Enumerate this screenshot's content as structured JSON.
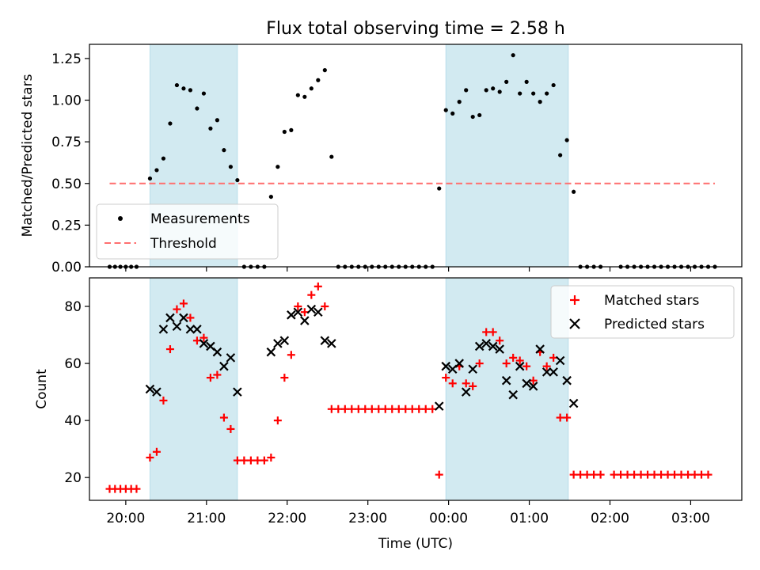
{
  "chart_data": [
    {
      "type": "scatter",
      "title": "Flux total observing time = 2.58 h",
      "xlabel": "",
      "ylabel": "Matched/Predicted stars",
      "ylim": [
        0,
        1.335
      ],
      "xlim": [
        "19:33",
        "03:38"
      ],
      "yticks": [
        "0.00",
        "0.25",
        "0.50",
        "0.75",
        "1.00",
        "1.25"
      ],
      "ytick_values": [
        0,
        0.25,
        0.5,
        0.75,
        1.0,
        1.25
      ],
      "grid": false,
      "legend": {
        "position": "lower-left",
        "entries": [
          "Measurements",
          "Threshold"
        ]
      },
      "colors": {
        "measurements": "#000000",
        "threshold": "#ff6f6f",
        "shade": "#add8e6"
      },
      "shaded_intervals": [
        [
          "20:18",
          "21:23"
        ],
        [
          "23:58",
          "01:29"
        ]
      ],
      "threshold": {
        "name": "Threshold",
        "value": 0.5,
        "x_range": [
          "19:48",
          "03:18"
        ]
      },
      "series": [
        {
          "name": "Measurements",
          "points": [
            [
              "19:48",
              0
            ],
            [
              "19:52",
              0
            ],
            [
              "19:56",
              0
            ],
            [
              "20:00",
              0
            ],
            [
              "20:04",
              0
            ],
            [
              "20:08",
              0
            ],
            [
              "20:18",
              0.53
            ],
            [
              "20:23",
              0.58
            ],
            [
              "20:28",
              0.65
            ],
            [
              "20:33",
              0.86
            ],
            [
              "20:38",
              1.09
            ],
            [
              "20:43",
              1.07
            ],
            [
              "20:48",
              1.06
            ],
            [
              "20:53",
              0.95
            ],
            [
              "20:58",
              1.04
            ],
            [
              "21:03",
              0.83
            ],
            [
              "21:08",
              0.88
            ],
            [
              "21:13",
              0.7
            ],
            [
              "21:18",
              0.6
            ],
            [
              "21:23",
              0.52
            ],
            [
              "21:28",
              0
            ],
            [
              "21:33",
              0
            ],
            [
              "21:38",
              0
            ],
            [
              "21:43",
              0
            ],
            [
              "21:48",
              0.42
            ],
            [
              "21:53",
              0.6
            ],
            [
              "21:58",
              0.81
            ],
            [
              "22:03",
              0.82
            ],
            [
              "22:08",
              1.03
            ],
            [
              "22:13",
              1.02
            ],
            [
              "22:18",
              1.07
            ],
            [
              "22:23",
              1.12
            ],
            [
              "22:28",
              1.18
            ],
            [
              "22:33",
              0.66
            ],
            [
              "22:38",
              0
            ],
            [
              "22:43",
              0
            ],
            [
              "22:48",
              0
            ],
            [
              "22:53",
              0
            ],
            [
              "22:58",
              0
            ],
            [
              "23:03",
              0
            ],
            [
              "23:08",
              0
            ],
            [
              "23:13",
              0
            ],
            [
              "23:18",
              0
            ],
            [
              "23:23",
              0
            ],
            [
              "23:28",
              0
            ],
            [
              "23:33",
              0
            ],
            [
              "23:38",
              0
            ],
            [
              "23:43",
              0
            ],
            [
              "23:48",
              0
            ],
            [
              "23:53",
              0.47
            ],
            [
              "23:58",
              0.94
            ],
            [
              "00:03",
              0.92
            ],
            [
              "00:08",
              0.99
            ],
            [
              "00:13",
              1.06
            ],
            [
              "00:18",
              0.9
            ],
            [
              "00:23",
              0.91
            ],
            [
              "00:28",
              1.06
            ],
            [
              "00:33",
              1.07
            ],
            [
              "00:38",
              1.05
            ],
            [
              "00:43",
              1.11
            ],
            [
              "00:48",
              1.27
            ],
            [
              "00:53",
              1.04
            ],
            [
              "00:58",
              1.11
            ],
            [
              "01:03",
              1.04
            ],
            [
              "01:08",
              0.99
            ],
            [
              "01:13",
              1.04
            ],
            [
              "01:18",
              1.09
            ],
            [
              "01:23",
              0.67
            ],
            [
              "01:28",
              0.76
            ],
            [
              "01:33",
              0.45
            ],
            [
              "01:38",
              0
            ],
            [
              "01:43",
              0
            ],
            [
              "01:48",
              0
            ],
            [
              "01:53",
              0
            ],
            [
              "02:08",
              0
            ],
            [
              "02:13",
              0
            ],
            [
              "02:18",
              0
            ],
            [
              "02:23",
              0
            ],
            [
              "02:28",
              0
            ],
            [
              "02:33",
              0
            ],
            [
              "02:38",
              0
            ],
            [
              "02:43",
              0
            ],
            [
              "02:48",
              0
            ],
            [
              "02:53",
              0
            ],
            [
              "02:58",
              0
            ],
            [
              "03:03",
              0
            ],
            [
              "03:08",
              0
            ],
            [
              "03:13",
              0
            ],
            [
              "03:18",
              0
            ]
          ]
        }
      ]
    },
    {
      "type": "scatter",
      "title": "",
      "xlabel": "Time (UTC)",
      "ylabel": "Count",
      "ylim": [
        12,
        90
      ],
      "xlim": [
        "19:33",
        "03:38"
      ],
      "yticks": [
        "20",
        "40",
        "60",
        "80"
      ],
      "ytick_values": [
        20,
        40,
        60,
        80
      ],
      "xticks": [
        "20:00",
        "21:00",
        "22:00",
        "23:00",
        "00:00",
        "01:00",
        "02:00",
        "03:00"
      ],
      "xtick_values": [
        "20:00",
        "21:00",
        "22:00",
        "23:00",
        "00:00",
        "01:00",
        "02:00",
        "03:00"
      ],
      "grid": false,
      "legend": {
        "position": "upper-right",
        "entries": [
          "Matched stars",
          "Predicted stars"
        ]
      },
      "colors": {
        "matched": "#ff0000",
        "predicted": "#000000",
        "shade": "#add8e6"
      },
      "shaded_intervals": [
        [
          "20:18",
          "21:23"
        ],
        [
          "23:58",
          "01:29"
        ]
      ],
      "series": [
        {
          "name": "Matched stars",
          "points": [
            [
              "19:48",
              16
            ],
            [
              "19:52",
              16
            ],
            [
              "19:56",
              16
            ],
            [
              "20:00",
              16
            ],
            [
              "20:04",
              16
            ],
            [
              "20:08",
              16
            ],
            [
              "20:18",
              27
            ],
            [
              "20:23",
              29
            ],
            [
              "20:28",
              47
            ],
            [
              "20:33",
              65
            ],
            [
              "20:38",
              79
            ],
            [
              "20:43",
              81
            ],
            [
              "20:48",
              76
            ],
            [
              "20:53",
              68
            ],
            [
              "20:58",
              69
            ],
            [
              "21:03",
              55
            ],
            [
              "21:08",
              56
            ],
            [
              "21:13",
              41
            ],
            [
              "21:18",
              37
            ],
            [
              "21:23",
              26
            ],
            [
              "21:28",
              26
            ],
            [
              "21:33",
              26
            ],
            [
              "21:38",
              26
            ],
            [
              "21:43",
              26
            ],
            [
              "21:48",
              27
            ],
            [
              "21:53",
              40
            ],
            [
              "21:58",
              55
            ],
            [
              "22:03",
              63
            ],
            [
              "22:08",
              80
            ],
            [
              "22:13",
              78
            ],
            [
              "22:18",
              84
            ],
            [
              "22:23",
              87
            ],
            [
              "22:28",
              80
            ],
            [
              "22:33",
              44
            ],
            [
              "22:38",
              44
            ],
            [
              "22:43",
              44
            ],
            [
              "22:48",
              44
            ],
            [
              "22:53",
              44
            ],
            [
              "22:58",
              44
            ],
            [
              "23:03",
              44
            ],
            [
              "23:08",
              44
            ],
            [
              "23:13",
              44
            ],
            [
              "23:18",
              44
            ],
            [
              "23:23",
              44
            ],
            [
              "23:28",
              44
            ],
            [
              "23:33",
              44
            ],
            [
              "23:38",
              44
            ],
            [
              "23:43",
              44
            ],
            [
              "23:48",
              44
            ],
            [
              "23:53",
              21
            ],
            [
              "23:58",
              55
            ],
            [
              "00:03",
              53
            ],
            [
              "00:08",
              59
            ],
            [
              "00:13",
              53
            ],
            [
              "00:18",
              52
            ],
            [
              "00:23",
              60
            ],
            [
              "00:28",
              71
            ],
            [
              "00:33",
              71
            ],
            [
              "00:38",
              68
            ],
            [
              "00:43",
              60
            ],
            [
              "00:48",
              62
            ],
            [
              "00:53",
              61
            ],
            [
              "00:58",
              59
            ],
            [
              "01:03",
              54
            ],
            [
              "01:08",
              64
            ],
            [
              "01:13",
              59
            ],
            [
              "01:18",
              62
            ],
            [
              "01:23",
              41
            ],
            [
              "01:28",
              41
            ],
            [
              "01:33",
              21
            ],
            [
              "01:38",
              21
            ],
            [
              "01:43",
              21
            ],
            [
              "01:48",
              21
            ],
            [
              "01:53",
              21
            ],
            [
              "02:03",
              21
            ],
            [
              "02:08",
              21
            ],
            [
              "02:13",
              21
            ],
            [
              "02:18",
              21
            ],
            [
              "02:23",
              21
            ],
            [
              "02:28",
              21
            ],
            [
              "02:33",
              21
            ],
            [
              "02:38",
              21
            ],
            [
              "02:43",
              21
            ],
            [
              "02:48",
              21
            ],
            [
              "02:53",
              21
            ],
            [
              "02:58",
              21
            ],
            [
              "03:03",
              21
            ],
            [
              "03:08",
              21
            ],
            [
              "03:13",
              21
            ]
          ]
        },
        {
          "name": "Predicted stars",
          "points": [
            [
              "20:18",
              51
            ],
            [
              "20:23",
              50
            ],
            [
              "20:28",
              72
            ],
            [
              "20:33",
              76
            ],
            [
              "20:38",
              73
            ],
            [
              "20:43",
              76
            ],
            [
              "20:48",
              72
            ],
            [
              "20:53",
              72
            ],
            [
              "20:58",
              67
            ],
            [
              "21:03",
              66
            ],
            [
              "21:08",
              64
            ],
            [
              "21:13",
              59
            ],
            [
              "21:18",
              62
            ],
            [
              "21:23",
              50
            ],
            [
              "21:48",
              64
            ],
            [
              "21:53",
              67
            ],
            [
              "21:58",
              68
            ],
            [
              "22:03",
              77
            ],
            [
              "22:08",
              78
            ],
            [
              "22:13",
              75
            ],
            [
              "22:18",
              79
            ],
            [
              "22:23",
              78
            ],
            [
              "22:28",
              68
            ],
            [
              "22:33",
              67
            ],
            [
              "23:53",
              45
            ],
            [
              "23:58",
              59
            ],
            [
              "00:03",
              58
            ],
            [
              "00:08",
              60
            ],
            [
              "00:13",
              50
            ],
            [
              "00:18",
              58
            ],
            [
              "00:23",
              66
            ],
            [
              "00:28",
              67
            ],
            [
              "00:33",
              66
            ],
            [
              "00:38",
              65
            ],
            [
              "00:43",
              54
            ],
            [
              "00:48",
              49
            ],
            [
              "00:53",
              59
            ],
            [
              "00:58",
              53
            ],
            [
              "01:03",
              52
            ],
            [
              "01:08",
              65
            ],
            [
              "01:13",
              57
            ],
            [
              "01:18",
              57
            ],
            [
              "01:23",
              61
            ],
            [
              "01:28",
              54
            ],
            [
              "01:33",
              46
            ]
          ]
        }
      ]
    }
  ]
}
